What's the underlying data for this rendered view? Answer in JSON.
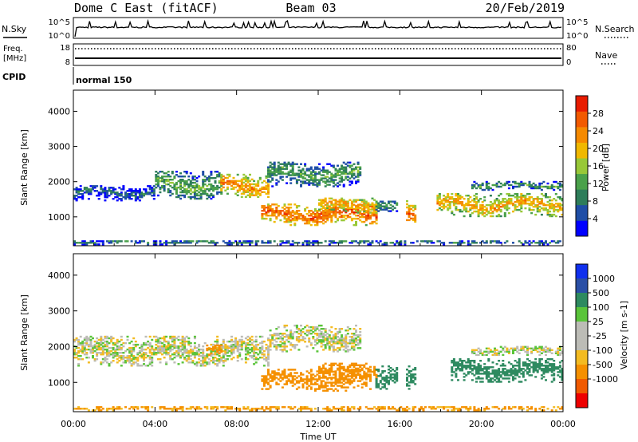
{
  "header": {
    "station": "Dome C East (fitACF)",
    "beam": "Beam 03",
    "date": "20/Feb/2019"
  },
  "labels": {
    "nsky": "N.Sky",
    "nsearch": "N.Search",
    "freq_line1": "Freq.",
    "freq_line2": "[MHz]",
    "nave": "Nave",
    "cpid": "CPID",
    "cpid_value": "normal 150"
  },
  "noise_axis": {
    "left_top": "10^5",
    "left_bottom": "10^0",
    "right_top": "10^5",
    "right_bottom": "10^0"
  },
  "freq_axis": {
    "left_ticks": [
      "18",
      "8"
    ],
    "right_ticks": [
      "80",
      "0"
    ]
  },
  "colors": {
    "power_scale": [
      "#0000ff",
      "#1f4ea6",
      "#2e7d5a",
      "#4aa14a",
      "#98c838",
      "#f0b800",
      "#f58a00",
      "#f25a00",
      "#e81c00"
    ],
    "velocity_scale": [
      "#ee0000",
      "#f05a00",
      "#f59000",
      "#f3bb22",
      "#bcbcb6",
      "#bcbcb6",
      "#5ac43a",
      "#2e8a60",
      "#2a4fa6",
      "#1030ee"
    ]
  },
  "chart_data": [
    {
      "type": "heatmap",
      "name": "power",
      "xlabel": "Time UT",
      "ylabel": "Slant Range [km]",
      "xlim": [
        0,
        24
      ],
      "ylim": [
        180,
        4600
      ],
      "x_ticks": [
        "00:00",
        "04:00",
        "08:00",
        "12:00",
        "16:00",
        "20:00",
        "00:00"
      ],
      "y_ticks": [
        1000,
        2000,
        3000,
        4000
      ],
      "colorbar": {
        "label": "Power [dB]",
        "ticks": [
          4,
          8,
          12,
          16,
          20,
          24,
          28
        ],
        "range": [
          0,
          32
        ]
      },
      "regions": [
        {
          "t0": 0.0,
          "t1": 4.0,
          "r0": 1450,
          "r1": 1900,
          "v": 8
        },
        {
          "t0": 4.0,
          "t1": 7.2,
          "r0": 1500,
          "r1": 2300,
          "v": 14
        },
        {
          "t0": 7.2,
          "t1": 9.5,
          "r0": 1550,
          "r1": 2200,
          "v": 24
        },
        {
          "t0": 9.5,
          "t1": 14.0,
          "r0": 1850,
          "r1": 2550,
          "v": 13
        },
        {
          "t0": 9.2,
          "t1": 14.8,
          "r0": 750,
          "r1": 1350,
          "v": 27
        },
        {
          "t0": 12.0,
          "t1": 14.8,
          "r0": 1100,
          "r1": 1550,
          "v": 23
        },
        {
          "t0": 14.8,
          "t1": 15.8,
          "r0": 1100,
          "r1": 1450,
          "v": 12
        },
        {
          "t0": 16.3,
          "t1": 16.8,
          "r0": 800,
          "r1": 1450,
          "v": 26
        },
        {
          "t0": 17.8,
          "t1": 24.0,
          "r0": 1000,
          "r1": 1650,
          "v": 22
        },
        {
          "t0": 19.5,
          "t1": 24.0,
          "r0": 1750,
          "r1": 2000,
          "v": 12
        },
        {
          "t0": 0.0,
          "t1": 24.0,
          "r0": 200,
          "r1": 330,
          "v": 10
        }
      ]
    },
    {
      "type": "heatmap",
      "name": "velocity",
      "xlabel": "Time UT",
      "ylabel": "Slant Range [km]",
      "xlim": [
        0,
        24
      ],
      "ylim": [
        180,
        4600
      ],
      "x_ticks": [
        "00:00",
        "04:00",
        "08:00",
        "12:00",
        "16:00",
        "20:00",
        "00:00"
      ],
      "y_ticks": [
        1000,
        2000,
        3000,
        4000
      ],
      "colorbar": {
        "label": "Velocity [m s-1]",
        "ticks": [
          1000,
          500,
          100,
          25,
          -25,
          -100,
          -500,
          -1000
        ],
        "range": [
          -1200,
          1200
        ]
      },
      "regions": [
        {
          "t0": 0.0,
          "t1": 9.5,
          "r0": 1450,
          "r1": 2300,
          "v": 0
        },
        {
          "t0": 9.5,
          "t1": 14.0,
          "r0": 1850,
          "r1": 2600,
          "v": 0
        },
        {
          "t0": 6.5,
          "t1": 7.2,
          "r0": 1700,
          "r1": 2050,
          "v": -200
        },
        {
          "t0": 9.2,
          "t1": 14.5,
          "r0": 750,
          "r1": 1350,
          "v": -300
        },
        {
          "t0": 12.0,
          "t1": 14.8,
          "r0": 1100,
          "r1": 1550,
          "v": -250
        },
        {
          "t0": 14.8,
          "t1": 15.8,
          "r0": 800,
          "r1": 1450,
          "v": 200
        },
        {
          "t0": 16.3,
          "t1": 16.8,
          "r0": 800,
          "r1": 1450,
          "v": 300
        },
        {
          "t0": 18.5,
          "t1": 24.0,
          "r0": 1000,
          "r1": 1650,
          "v": 250
        },
        {
          "t0": 19.5,
          "t1": 24.0,
          "r0": 1750,
          "r1": 2000,
          "v": 0
        },
        {
          "t0": 0.0,
          "t1": 24.0,
          "r0": 200,
          "r1": 330,
          "v": -120
        }
      ]
    }
  ]
}
